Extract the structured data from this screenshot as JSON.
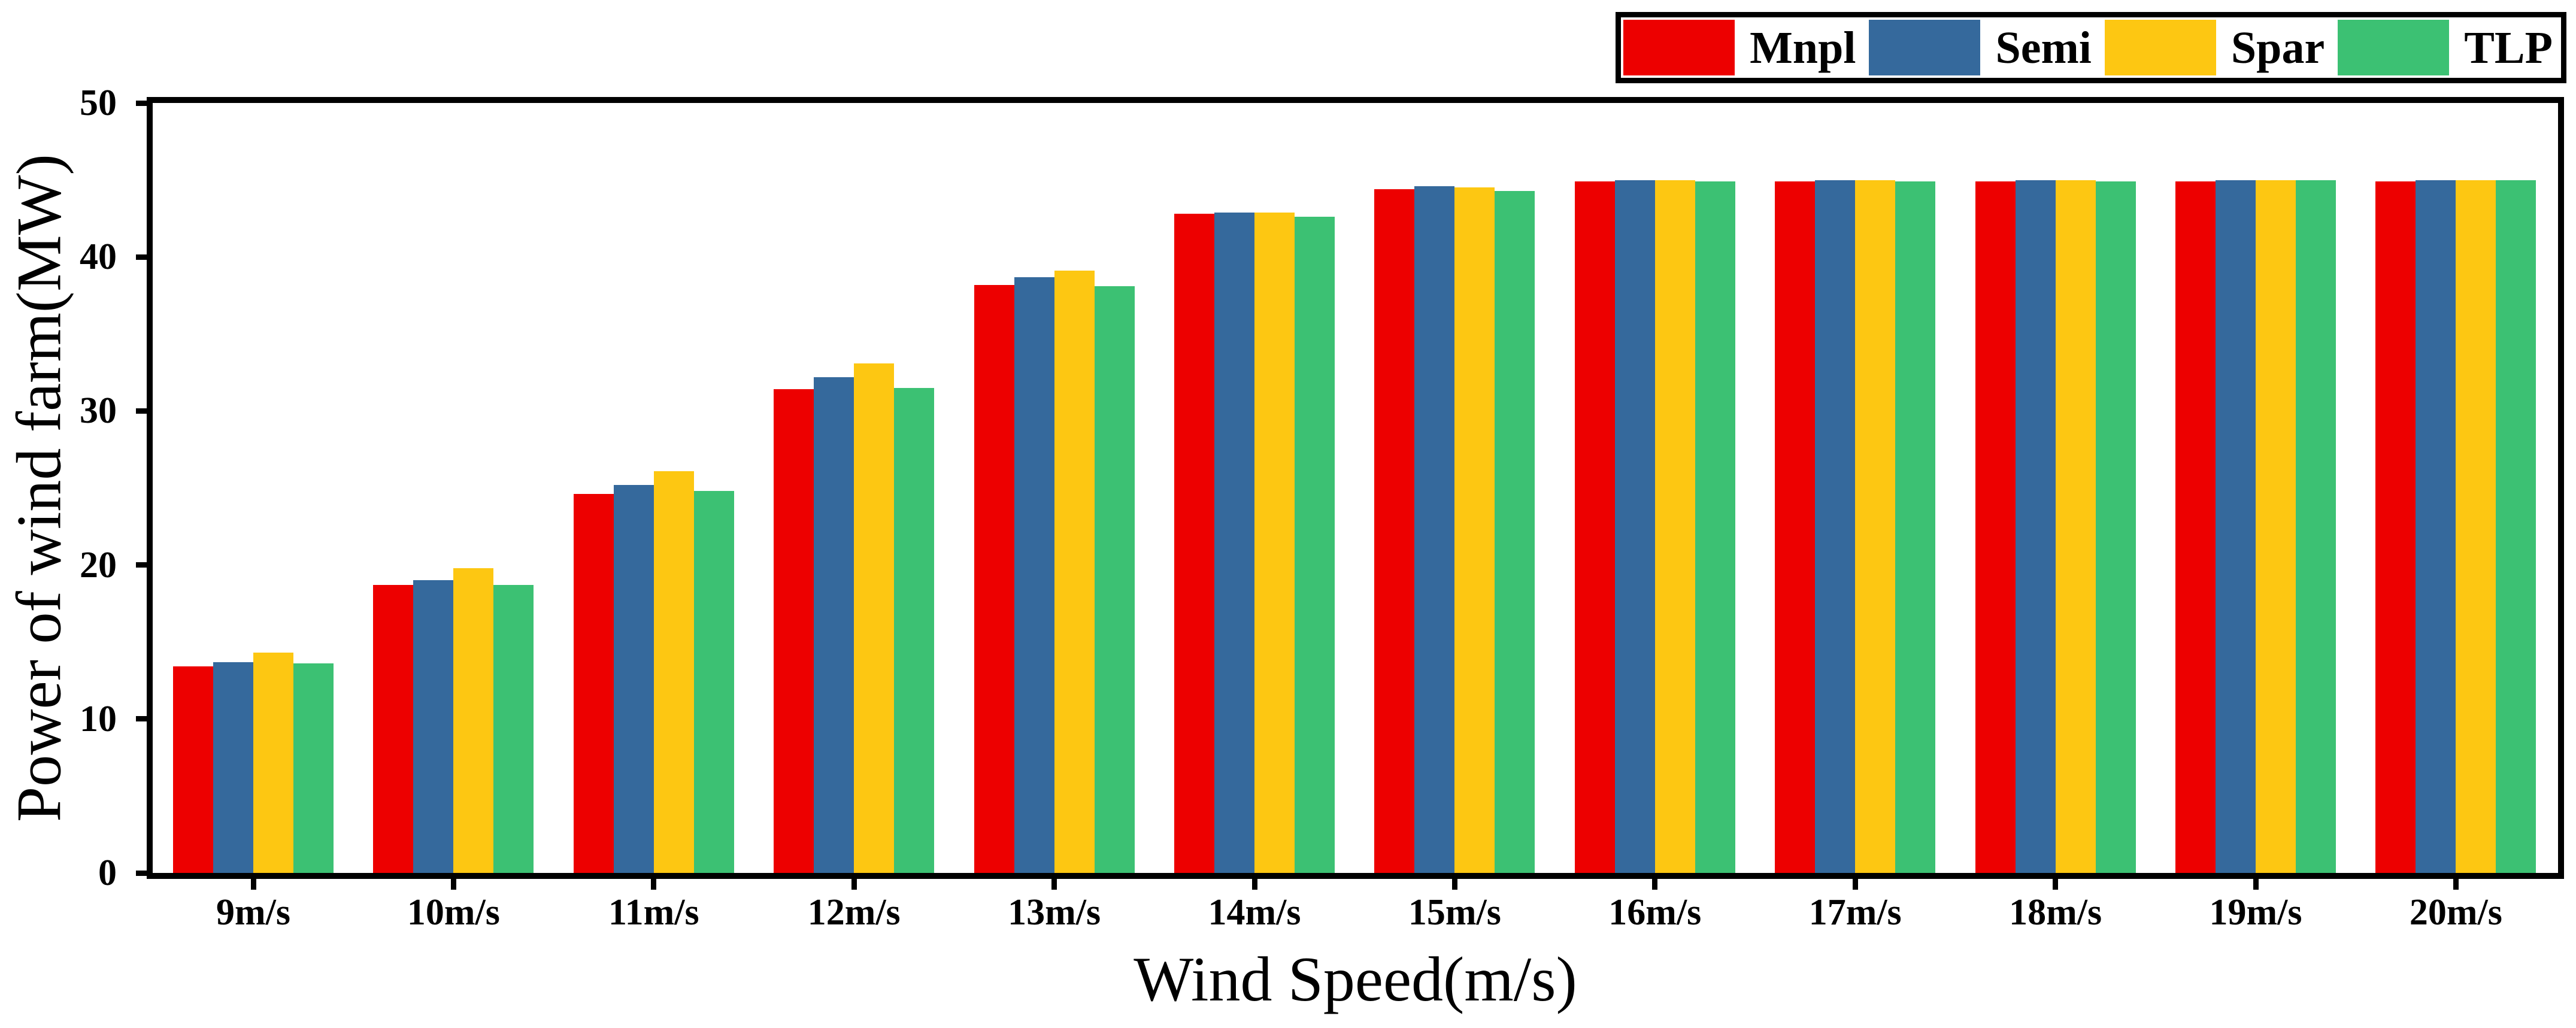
{
  "chart_data": {
    "type": "bar",
    "title": "",
    "xlabel": "Wind Speed(m/s)",
    "ylabel": "Power of wind farm(MW)",
    "categories": [
      "9m/s",
      "10m/s",
      "11m/s",
      "12m/s",
      "13m/s",
      "14m/s",
      "15m/s",
      "16m/s",
      "17m/s",
      "18m/s",
      "19m/s",
      "20m/s"
    ],
    "ylim": [
      0,
      50
    ],
    "yticks": [
      0,
      10,
      20,
      30,
      40,
      50
    ],
    "grid": false,
    "legend_position": "top-right-outside",
    "axis_color": "#000000",
    "background_color": "#ffffff",
    "series": [
      {
        "name": "Mnpl",
        "color": "#ED0000",
        "values": [
          13.4,
          18.7,
          24.6,
          31.4,
          38.2,
          42.8,
          44.4,
          44.9,
          44.9,
          44.9,
          44.9,
          44.9
        ]
      },
      {
        "name": "Semi",
        "color": "#35699C",
        "values": [
          13.7,
          19.0,
          25.2,
          32.2,
          38.7,
          42.9,
          44.6,
          45.0,
          45.0,
          45.0,
          45.0,
          45.0
        ]
      },
      {
        "name": "Spar",
        "color": "#FDC712",
        "values": [
          14.3,
          19.8,
          26.1,
          33.1,
          39.1,
          42.9,
          44.5,
          45.0,
          45.0,
          45.0,
          45.0,
          45.0
        ]
      },
      {
        "name": "TLP",
        "color": "#3CC173",
        "values": [
          13.6,
          18.7,
          24.8,
          31.5,
          38.1,
          42.6,
          44.3,
          44.9,
          44.9,
          44.9,
          45.0,
          45.0
        ]
      }
    ]
  }
}
